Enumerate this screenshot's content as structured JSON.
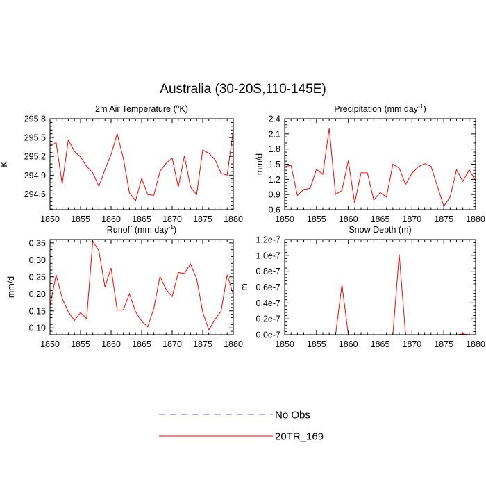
{
  "title": "Australia (30-20S,110-145E)",
  "legend": [
    {
      "label": "No Obs",
      "color": "#6666ff",
      "dash": true
    },
    {
      "label": "20TR_169",
      "color": "#ff0000",
      "dash": false
    }
  ],
  "chart_data": [
    {
      "type": "line",
      "title_main": "2m Air Temperature (",
      "title_sup": "o",
      "title_after": "K)",
      "ylabel": "K",
      "xlim": [
        1850,
        1880
      ],
      "ylim": [
        294.35,
        295.8
      ],
      "xticks": [
        1850,
        1855,
        1860,
        1865,
        1870,
        1875,
        1880
      ],
      "yticks": [
        294.6,
        294.9,
        295.2,
        295.5,
        295.8
      ],
      "ytick_labels": [
        "294.6",
        "294.9",
        "295.2",
        "295.5",
        "295.8"
      ],
      "x": [
        1850,
        1851,
        1852,
        1853,
        1854,
        1855,
        1856,
        1857,
        1858,
        1859,
        1860,
        1861,
        1862,
        1863,
        1864,
        1865,
        1866,
        1867,
        1868,
        1869,
        1870,
        1871,
        1872,
        1873,
        1874,
        1875,
        1876,
        1877,
        1878,
        1879,
        1880
      ],
      "series": [
        {
          "name": "20TR_169",
          "color": "#ff0000",
          "values": [
            295.36,
            295.42,
            294.76,
            295.46,
            295.28,
            295.19,
            295.04,
            294.94,
            294.72,
            294.99,
            295.23,
            295.56,
            295.17,
            294.62,
            294.49,
            294.85,
            294.59,
            294.58,
            294.96,
            295.09,
            295.17,
            294.71,
            295.21,
            294.71,
            294.59,
            295.3,
            295.25,
            295.15,
            294.93,
            294.9,
            295.62
          ]
        }
      ]
    },
    {
      "type": "line",
      "title_main": "Precipitation (mm day",
      "title_sup": "-1",
      "title_after": ")",
      "ylabel": "mm/d",
      "xlim": [
        1850,
        1880
      ],
      "ylim": [
        0.6,
        2.4
      ],
      "xticks": [
        1850,
        1855,
        1860,
        1865,
        1870,
        1875,
        1880
      ],
      "yticks": [
        0.6,
        0.9,
        1.2,
        1.5,
        1.8,
        2.1,
        2.4
      ],
      "ytick_labels": [
        "0.6",
        "0.9",
        "1.2",
        "1.5",
        "1.8",
        "2.1",
        "2.4"
      ],
      "x": [
        1850,
        1851,
        1852,
        1853,
        1854,
        1855,
        1856,
        1857,
        1858,
        1859,
        1860,
        1861,
        1862,
        1863,
        1864,
        1865,
        1866,
        1867,
        1868,
        1869,
        1870,
        1871,
        1872,
        1873,
        1874,
        1875,
        1876,
        1877,
        1878,
        1879,
        1880
      ],
      "series": [
        {
          "name": "20TR_169",
          "color": "#ff0000",
          "values": [
            1.45,
            1.48,
            0.88,
            1.0,
            1.02,
            1.4,
            1.3,
            2.21,
            0.9,
            0.98,
            1.57,
            0.73,
            1.33,
            1.33,
            0.79,
            0.94,
            0.85,
            1.5,
            1.42,
            1.1,
            1.32,
            1.45,
            1.51,
            1.46,
            1.06,
            0.67,
            0.85,
            1.39,
            1.16,
            1.39,
            1.17
          ]
        }
      ]
    },
    {
      "type": "line",
      "title_main": "Runoff (mm day",
      "title_sup": "-1",
      "title_after": ")",
      "ylabel": "mm/d",
      "xlim": [
        1850,
        1880
      ],
      "ylim": [
        0.08,
        0.36
      ],
      "xticks": [
        1850,
        1855,
        1860,
        1865,
        1870,
        1875,
        1880
      ],
      "yticks": [
        0.1,
        0.15,
        0.2,
        0.25,
        0.3,
        0.35
      ],
      "ytick_labels": [
        "0.10",
        "0.15",
        "0.20",
        "0.25",
        "0.30",
        "0.35"
      ],
      "x": [
        1850,
        1851,
        1852,
        1853,
        1854,
        1855,
        1856,
        1857,
        1858,
        1859,
        1860,
        1861,
        1862,
        1863,
        1864,
        1865,
        1866,
        1867,
        1868,
        1869,
        1870,
        1871,
        1872,
        1873,
        1874,
        1875,
        1876,
        1877,
        1878,
        1879,
        1880
      ],
      "series": [
        {
          "name": "20TR_169",
          "color": "#ff0000",
          "values": [
            0.165,
            0.256,
            0.187,
            0.147,
            0.122,
            0.145,
            0.127,
            0.355,
            0.327,
            0.22,
            0.276,
            0.152,
            0.153,
            0.2,
            0.148,
            0.12,
            0.103,
            0.158,
            0.251,
            0.213,
            0.192,
            0.263,
            0.26,
            0.288,
            0.245,
            0.146,
            0.094,
            0.125,
            0.149,
            0.256,
            0.198
          ]
        }
      ]
    },
    {
      "type": "line",
      "title_main": "Snow Depth (m)",
      "title_sup": "",
      "title_after": "",
      "ylabel": "m",
      "xlim": [
        1850,
        1880
      ],
      "ylim": [
        0,
        1.2e-07
      ],
      "xticks": [
        1850,
        1855,
        1860,
        1865,
        1870,
        1875,
        1880
      ],
      "yticks": [
        0,
        2e-08,
        4e-08,
        6e-08,
        8e-08,
        1e-07,
        1.2e-07
      ],
      "ytick_labels": [
        "0.0e-7",
        "0.2e-7",
        "0.4e-7",
        "0.6e-7",
        "0.8e-7",
        "1.0e-7",
        "1.2e-7"
      ],
      "x": [
        1850,
        1851,
        1852,
        1853,
        1854,
        1855,
        1856,
        1857,
        1858,
        1859,
        1860,
        1861,
        1862,
        1863,
        1864,
        1865,
        1866,
        1867,
        1868,
        1869,
        1870,
        1871,
        1872,
        1873,
        1874,
        1875,
        1876,
        1877,
        1878,
        1879,
        1880
      ],
      "series": [
        {
          "name": "20TR_169",
          "color": "#ff0000",
          "values": [
            0,
            0,
            0,
            0,
            0,
            0,
            0,
            0,
            0,
            6.3e-08,
            0,
            0,
            0,
            0,
            0,
            0,
            0,
            0,
            1.01e-07,
            0,
            0,
            0,
            0,
            0,
            0,
            0,
            0,
            0,
            1e-09,
            0,
            0
          ]
        }
      ]
    }
  ]
}
